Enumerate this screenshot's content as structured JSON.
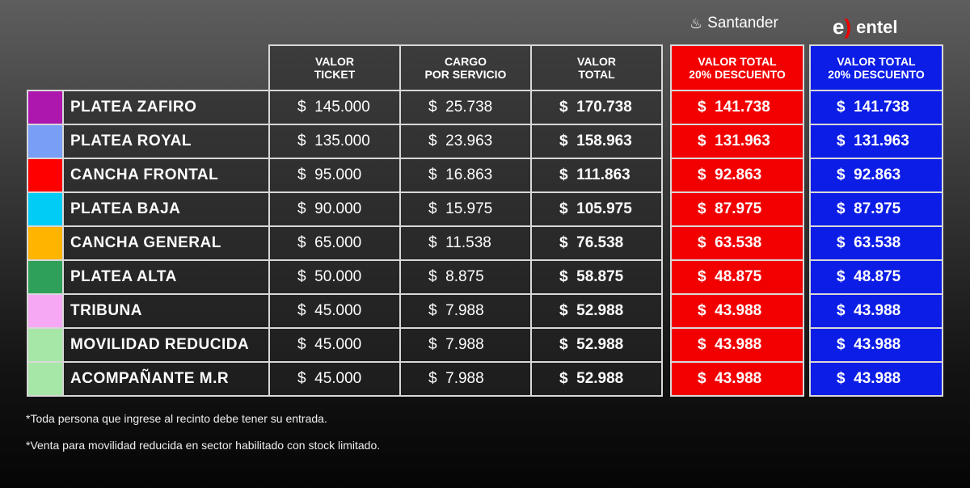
{
  "headers": {
    "ticket": "VALOR\nTICKET",
    "cargo": "CARGO\nPOR SERVICIO",
    "total": "VALOR\nTOTAL",
    "discount": "VALOR TOTAL\n20% DESCUENTO"
  },
  "brands": {
    "santander": "Santander",
    "entel": "entel",
    "santander_color": "#f20000",
    "entel_color": "#0c1de6"
  },
  "rows": [
    {
      "name": "PLATEA ZAFIRO",
      "color": "#ad17ad",
      "ticket": "$  145.000",
      "cargo": "$  25.738",
      "total": "$  170.738",
      "santander": "$  141.738",
      "entel": "$  141.738"
    },
    {
      "name": "PLATEA ROYAL",
      "color": "#789ef5",
      "ticket": "$  135.000",
      "cargo": "$  23.963",
      "total": "$  158.963",
      "santander": "$  131.963",
      "entel": "$  131.963"
    },
    {
      "name": "CANCHA FRONTAL",
      "color": "#ff0000",
      "ticket": "$  95.000",
      "cargo": "$  16.863",
      "total": "$  111.863",
      "santander": "$  92.863",
      "entel": "$  92.863"
    },
    {
      "name": "PLATEA BAJA",
      "color": "#00ccf5",
      "ticket": "$  90.000",
      "cargo": "$  15.975",
      "total": "$  105.975",
      "santander": "$  87.975",
      "entel": "$  87.975"
    },
    {
      "name": "CANCHA GENERAL",
      "color": "#ffb400",
      "ticket": "$  65.000",
      "cargo": "$  11.538",
      "total": "$  76.538",
      "santander": "$  63.538",
      "entel": "$  63.538"
    },
    {
      "name": "PLATEA ALTA",
      "color": "#2fa05a",
      "ticket": "$  50.000",
      "cargo": "$  8.875",
      "total": "$  58.875",
      "santander": "$  48.875",
      "entel": "$  48.875"
    },
    {
      "name": "TRIBUNA",
      "color": "#f7a8f5",
      "ticket": "$  45.000",
      "cargo": "$  7.988",
      "total": "$  52.988",
      "santander": "$  43.988",
      "entel": "$  43.988"
    },
    {
      "name": "MOVILIDAD REDUCIDA",
      "color": "#a6e6a6",
      "ticket": "$  45.000",
      "cargo": "$  7.988",
      "total": "$  52.988",
      "santander": "$  43.988",
      "entel": "$  43.988"
    },
    {
      "name": "ACOMPAÑANTE M.R",
      "color": "#a6e6a6",
      "ticket": "$  45.000",
      "cargo": "$  7.988",
      "total": "$  52.988",
      "santander": "$  43.988",
      "entel": "$  43.988"
    }
  ],
  "notes": [
    "*Toda persona que ingrese al recinto debe tener su entrada.",
    "*Venta para movilidad reducida en sector habilitado con stock limitado."
  ]
}
